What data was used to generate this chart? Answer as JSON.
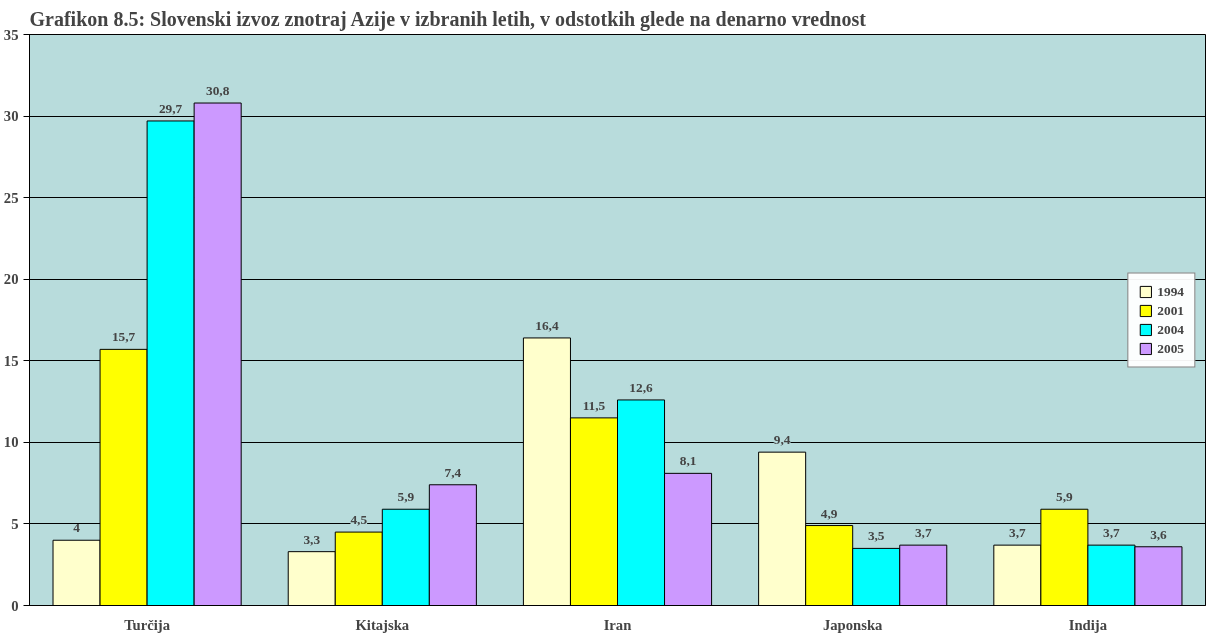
{
  "chart_data": {
    "type": "bar",
    "title": "Grafikon 8.5: Slovenski izvoz znotraj Azije v izbranih letih, v odstotkih glede na denarno vrednost",
    "categories": [
      "Turčija",
      "Kitajska",
      "Iran",
      "Japonska",
      "Indija"
    ],
    "series": [
      {
        "name": "1994",
        "color": "#ffffcc",
        "values": [
          4,
          3.3,
          16.4,
          9.4,
          3.7
        ],
        "value_labels": [
          "4",
          "3,3",
          "16,4",
          "9,4",
          "3,7"
        ]
      },
      {
        "name": "2001",
        "color": "#ffff00",
        "values": [
          15.7,
          4.5,
          11.5,
          4.9,
          5.9
        ],
        "value_labels": [
          "15,7",
          "4,5",
          "11,5",
          "4,9",
          "5,9"
        ]
      },
      {
        "name": "2004",
        "color": "#00ffff",
        "values": [
          29.7,
          5.9,
          12.6,
          3.5,
          3.7
        ],
        "value_labels": [
          "29,7",
          "5,9",
          "12,6",
          "3,5",
          "3,7"
        ]
      },
      {
        "name": "2005",
        "color": "#cc99ff",
        "values": [
          30.8,
          7.4,
          8.1,
          3.7,
          3.6
        ],
        "value_labels": [
          "30,8",
          "7,4",
          "8,1",
          "3,7",
          "3,6"
        ]
      }
    ],
    "ylim": [
      0,
      35
    ],
    "yticks": [
      0,
      5,
      10,
      15,
      20,
      25,
      30,
      35
    ],
    "grid": "y",
    "legend": "right"
  }
}
